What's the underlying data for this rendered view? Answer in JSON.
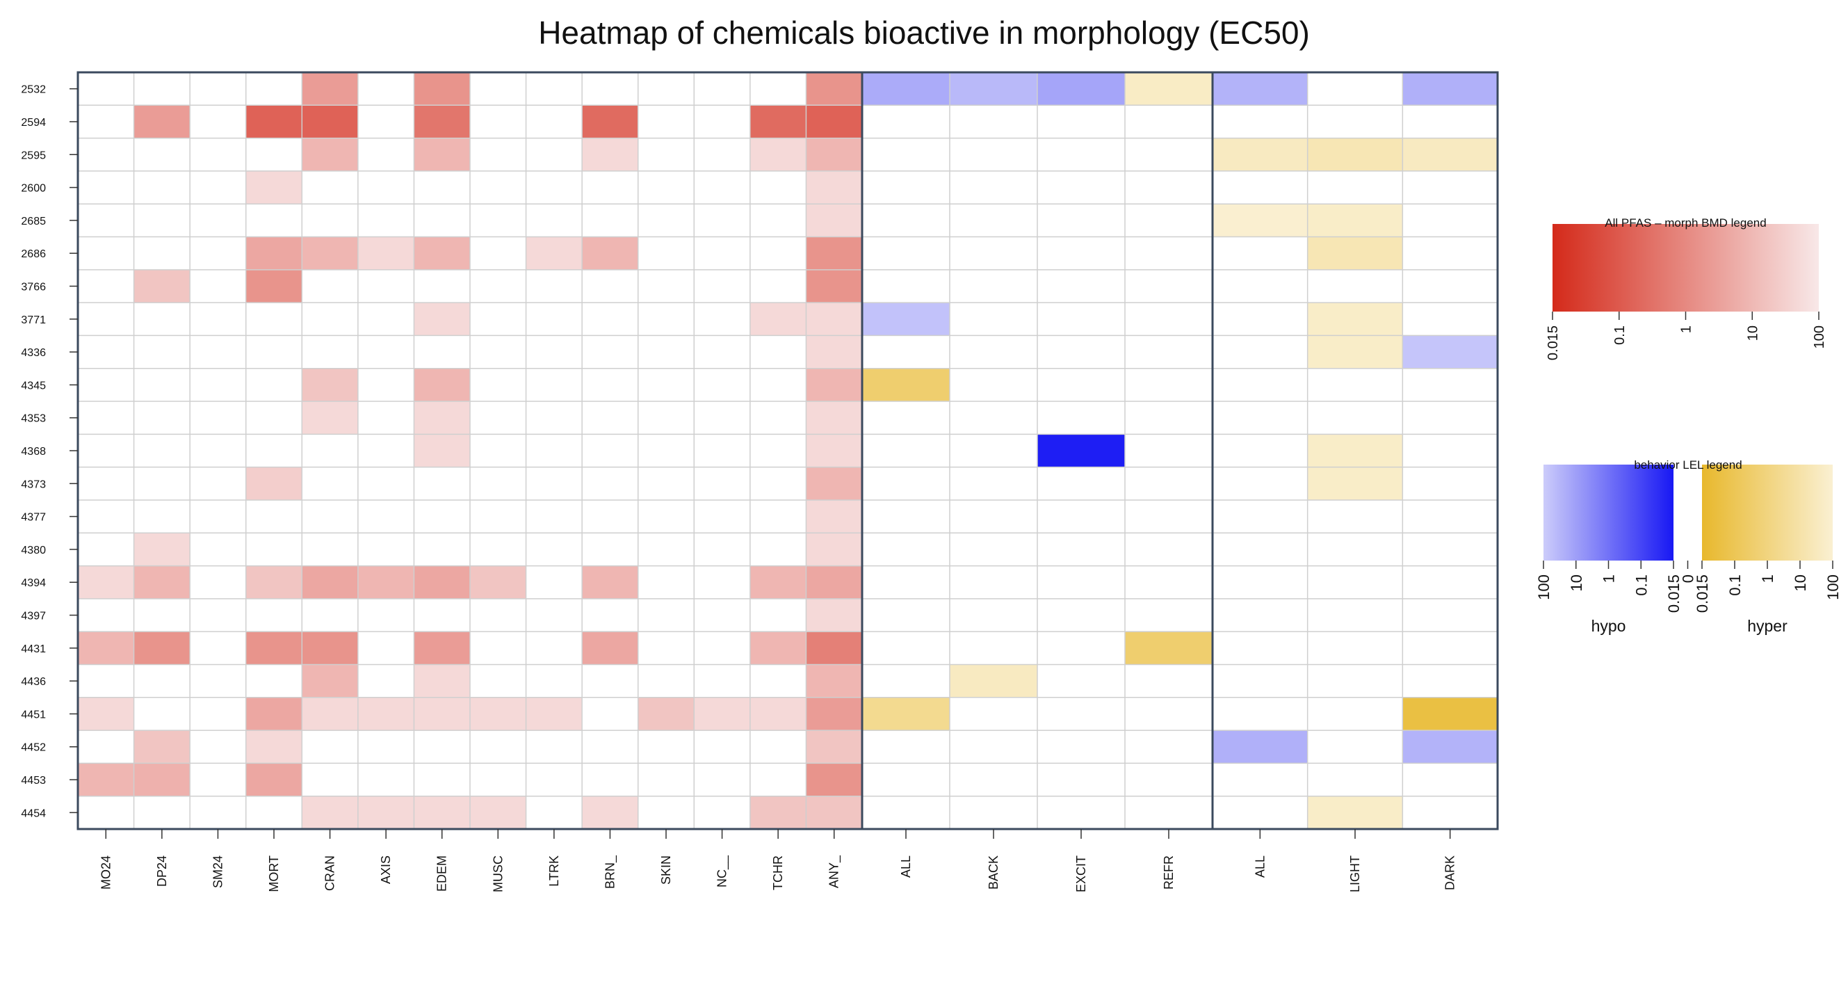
{
  "chart_data": {
    "type": "heatmap",
    "title": "Heatmap of chemicals bioactive in morphology (EC50)",
    "rows": [
      "2532",
      "2594",
      "2595",
      "2600",
      "2685",
      "2686",
      "3766",
      "3771",
      "4336",
      "4345",
      "4353",
      "4368",
      "4373",
      "4377",
      "4380",
      "4394",
      "4397",
      "4431",
      "4436",
      "4451",
      "4452",
      "4453",
      "4454"
    ],
    "panels": [
      {
        "name": "morphology",
        "columns": [
          "MO24",
          "DP24",
          "SM24",
          "MORT",
          "CRAN",
          "AXIS",
          "EDEM",
          "MUSC",
          "LTRK",
          "BRN_",
          "SKIN",
          "NC__",
          "TCHR",
          "ANY_"
        ],
        "values": [
          [
            null,
            null,
            null,
            null,
            3,
            null,
            2,
            null,
            null,
            null,
            null,
            null,
            null,
            2
          ],
          [
            null,
            3,
            null,
            0.2,
            0.2,
            null,
            0.5,
            null,
            null,
            0.3,
            null,
            null,
            0.3,
            0.2
          ],
          [
            null,
            null,
            null,
            null,
            10,
            null,
            10,
            null,
            null,
            50,
            null,
            null,
            50,
            10
          ],
          [
            null,
            null,
            null,
            50,
            null,
            null,
            null,
            null,
            null,
            null,
            null,
            null,
            null,
            50
          ],
          [
            null,
            null,
            null,
            null,
            null,
            null,
            null,
            null,
            null,
            null,
            null,
            null,
            null,
            50
          ],
          [
            null,
            null,
            null,
            5,
            10,
            50,
            10,
            null,
            50,
            10,
            null,
            null,
            null,
            2
          ],
          [
            null,
            20,
            null,
            2,
            null,
            null,
            null,
            null,
            null,
            null,
            null,
            null,
            null,
            2
          ],
          [
            null,
            null,
            null,
            null,
            null,
            null,
            50,
            null,
            null,
            null,
            null,
            null,
            50,
            50
          ],
          [
            null,
            null,
            null,
            null,
            null,
            null,
            null,
            null,
            null,
            null,
            null,
            null,
            null,
            50
          ],
          [
            null,
            null,
            null,
            null,
            20,
            null,
            10,
            null,
            null,
            null,
            null,
            null,
            null,
            10
          ],
          [
            null,
            null,
            null,
            null,
            50,
            null,
            50,
            null,
            null,
            null,
            null,
            null,
            null,
            50
          ],
          [
            null,
            null,
            null,
            null,
            null,
            null,
            50,
            null,
            null,
            null,
            null,
            null,
            null,
            50
          ],
          [
            null,
            null,
            null,
            30,
            null,
            null,
            null,
            null,
            null,
            null,
            null,
            null,
            null,
            10
          ],
          [
            null,
            null,
            null,
            null,
            null,
            null,
            null,
            null,
            null,
            null,
            null,
            null,
            null,
            50
          ],
          [
            null,
            50,
            null,
            null,
            null,
            null,
            null,
            null,
            null,
            null,
            null,
            null,
            null,
            50
          ],
          [
            50,
            10,
            null,
            20,
            5,
            10,
            5,
            20,
            null,
            10,
            null,
            null,
            10,
            5
          ],
          [
            null,
            null,
            null,
            null,
            null,
            null,
            null,
            null,
            null,
            null,
            null,
            null,
            null,
            50
          ],
          [
            10,
            2,
            null,
            2,
            2,
            null,
            3,
            null,
            null,
            5,
            null,
            null,
            10,
            0.8
          ],
          [
            null,
            null,
            null,
            null,
            10,
            null,
            50,
            null,
            null,
            null,
            null,
            null,
            null,
            10
          ],
          [
            50,
            null,
            null,
            5,
            50,
            50,
            50,
            50,
            50,
            null,
            20,
            50,
            50,
            3
          ],
          [
            null,
            20,
            null,
            50,
            null,
            null,
            null,
            null,
            null,
            null,
            null,
            null,
            null,
            20
          ],
          [
            10,
            8,
            null,
            5,
            null,
            null,
            null,
            null,
            null,
            null,
            null,
            null,
            null,
            2
          ],
          [
            null,
            null,
            null,
            null,
            50,
            50,
            50,
            50,
            null,
            50,
            null,
            null,
            20,
            20
          ]
        ]
      },
      {
        "name": "behavior-1",
        "columns": [
          "ALL",
          "BACK",
          "EXCIT",
          "REFR"
        ],
        "values": [
          [
            -20,
            -40,
            -15,
            50
          ],
          [
            null,
            null,
            null,
            null
          ],
          [
            null,
            null,
            null,
            null
          ],
          [
            null,
            null,
            null,
            null
          ],
          [
            null,
            null,
            null,
            null
          ],
          [
            null,
            null,
            null,
            null
          ],
          [
            null,
            null,
            null,
            null
          ],
          [
            -60,
            null,
            null,
            null
          ],
          [
            null,
            null,
            null,
            null
          ],
          [
            0.5,
            null,
            null,
            null
          ],
          [
            null,
            null,
            null,
            null
          ],
          [
            null,
            null,
            -0.02,
            null
          ],
          [
            null,
            null,
            null,
            null
          ],
          [
            null,
            null,
            null,
            null
          ],
          [
            null,
            null,
            null,
            null
          ],
          [
            null,
            null,
            null,
            null
          ],
          [
            null,
            null,
            null,
            null
          ],
          [
            null,
            null,
            null,
            0.5
          ],
          [
            null,
            40,
            null,
            null
          ],
          [
            3,
            null,
            null,
            null
          ],
          [
            null,
            null,
            null,
            null
          ],
          [
            null,
            null,
            null,
            null
          ],
          [
            null,
            null,
            null,
            null
          ]
        ]
      },
      {
        "name": "behavior-2",
        "columns": [
          "ALL",
          "LIGHT",
          "DARK"
        ],
        "values": [
          [
            -30,
            null,
            -25
          ],
          [
            null,
            null,
            null
          ],
          [
            40,
            20,
            40
          ],
          [
            null,
            null,
            null
          ],
          [
            90,
            60,
            null
          ],
          [
            null,
            20,
            null
          ],
          [
            null,
            null,
            null
          ],
          [
            null,
            60,
            null
          ],
          [
            null,
            60,
            -70
          ],
          [
            null,
            null,
            null
          ],
          [
            null,
            null,
            null
          ],
          [
            null,
            60,
            null
          ],
          [
            null,
            60,
            null
          ],
          [
            null,
            null,
            null
          ],
          [
            null,
            null,
            null
          ],
          [
            null,
            null,
            null
          ],
          [
            null,
            null,
            null
          ],
          [
            null,
            null,
            null
          ],
          [
            null,
            null,
            null
          ],
          [
            null,
            null,
            0.05
          ],
          [
            -25,
            null,
            -30
          ],
          [
            null,
            null,
            null
          ],
          [
            null,
            60,
            null
          ]
        ]
      }
    ],
    "legends": {
      "morph": {
        "title": "All PFAS – morph BMD legend",
        "ticks": [
          "0.015",
          "0.1",
          "1",
          "10",
          "100"
        ],
        "colors": [
          "#d42a1a",
          "#f8e8e8"
        ]
      },
      "behavior": {
        "title": "behavior LEL legend",
        "hypo": {
          "label": "hypo",
          "ticks": [
            "100",
            "10",
            "1",
            "0.1",
            "0.015"
          ],
          "colors": [
            "#ccccfa",
            "#1818f4"
          ]
        },
        "gap_tick": "0",
        "hyper": {
          "label": "hyper",
          "ticks": [
            "0.015",
            "0.1",
            "1",
            "10",
            "100"
          ],
          "colors": [
            "#e8b82c",
            "#faf0d2"
          ]
        }
      }
    },
    "colors": {
      "morph_strong": "#d42a1a",
      "morph_weak": "#f8e8e8",
      "hypo_strong": "#1818f4",
      "hypo_weak": "#ccccfa",
      "hyper_strong": "#e8b82c",
      "hyper_weak": "#faf0d2",
      "grid": "#cfcfcf",
      "frame": "#3b4a5e"
    }
  }
}
